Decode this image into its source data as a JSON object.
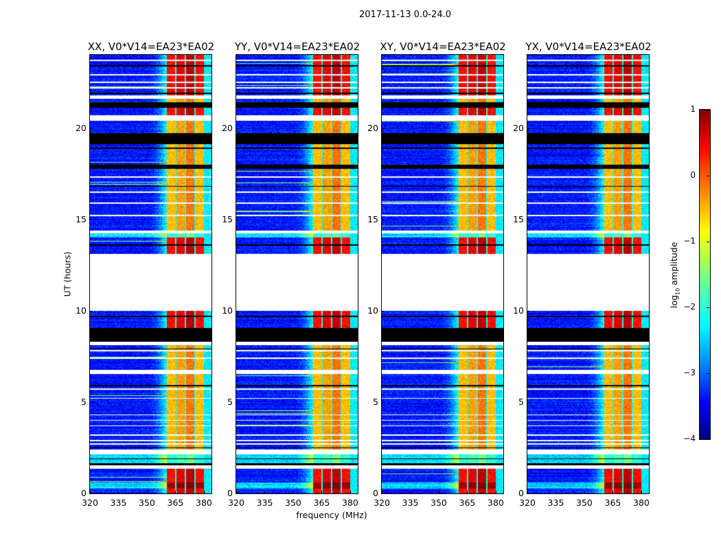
{
  "chart_data": {
    "type": "heatmap",
    "title": "2017-11-13 0.0-24.0",
    "xlabel": "frequency (MHz)",
    "ylabel": "UT (hours)",
    "xlim": [
      320,
      384
    ],
    "ylim": [
      0,
      24
    ],
    "xticks": [
      320,
      335,
      350,
      365,
      380
    ],
    "yticks": [
      0,
      5,
      10,
      15,
      20
    ],
    "colormap": "jet",
    "colorbar": {
      "label_prefix": "log",
      "label_sub": "10",
      "label_suffix": " amplitude",
      "range": [
        -4,
        1
      ],
      "ticks": [
        "1",
        "0",
        "−1",
        "−2",
        "−3",
        "−4"
      ],
      "tick_values": [
        1,
        0,
        -1,
        -2,
        -3,
        -4
      ]
    },
    "panels": [
      {
        "title": "XX, V0*V14=EA23*EA02",
        "seed": 11
      },
      {
        "title": "YY, V0*V14=EA23*EA02",
        "seed": 23
      },
      {
        "title": "XY, V0*V14=EA23*EA02",
        "seed": 37
      },
      {
        "title": "YX, V0*V14=EA23*EA02",
        "seed": 51
      }
    ],
    "spectral_model": {
      "background_log10": -3.3,
      "band_edges_MHz": [
        360.5,
        380
      ],
      "subband_gaps_MHz": [
        365.2,
        370.2,
        375.2
      ],
      "upper_edge_log10": -2.2
    },
    "time_segments": [
      {
        "t": [
          21.8,
          24.0
        ],
        "kind": "high"
      },
      {
        "t": [
          21.6,
          21.8
        ],
        "kind": "blank"
      },
      {
        "t": [
          21.1,
          21.4
        ],
        "kind": "flagged"
      },
      {
        "t": [
          20.7,
          21.1
        ],
        "kind": "high"
      },
      {
        "t": [
          20.4,
          20.7
        ],
        "kind": "blank"
      },
      {
        "t": [
          19.7,
          20.4
        ],
        "kind": "mid"
      },
      {
        "t": [
          19.1,
          19.7
        ],
        "kind": "flagged"
      },
      {
        "t": [
          18.0,
          19.1
        ],
        "kind": "mid"
      },
      {
        "t": [
          17.75,
          18.0
        ],
        "kind": "flagged"
      },
      {
        "t": [
          14.4,
          17.75
        ],
        "kind": "mid"
      },
      {
        "t": [
          14.25,
          14.4
        ],
        "kind": "blank"
      },
      {
        "t": [
          14.0,
          14.25
        ],
        "kind": "low"
      },
      {
        "t": [
          13.1,
          14.0
        ],
        "kind": "high"
      },
      {
        "t": [
          10.0,
          13.1
        ],
        "kind": "blank"
      },
      {
        "t": [
          9.05,
          10.0
        ],
        "kind": "high"
      },
      {
        "t": [
          8.3,
          9.05
        ],
        "kind": "flagged"
      },
      {
        "t": [
          8.1,
          8.3
        ],
        "kind": "blank"
      },
      {
        "t": [
          6.75,
          8.1
        ],
        "kind": "mid"
      },
      {
        "t": [
          6.55,
          6.75
        ],
        "kind": "blank"
      },
      {
        "t": [
          2.4,
          6.55
        ],
        "kind": "mid"
      },
      {
        "t": [
          2.15,
          2.4
        ],
        "kind": "blank"
      },
      {
        "t": [
          1.65,
          2.15
        ],
        "kind": "low"
      },
      {
        "t": [
          1.55,
          1.65
        ],
        "kind": "flagged"
      },
      {
        "t": [
          1.35,
          1.55
        ],
        "kind": "blank"
      },
      {
        "t": [
          0.6,
          1.35
        ],
        "kind": "high"
      },
      {
        "t": [
          0.25,
          0.6
        ],
        "kind": "very-high"
      },
      {
        "t": [
          0.0,
          0.25
        ],
        "kind": "high"
      }
    ],
    "thin_blank_lines_hours": [
      23.7,
      22.9,
      22.5,
      22.2,
      17.3,
      16.5,
      15.9,
      15.2,
      7.8,
      7.4,
      5.7,
      5.2,
      4.3,
      4.0,
      3.7,
      3.2,
      2.9,
      2.7
    ],
    "thin_flagged_lines_hours": [
      23.4,
      21.9,
      18.9,
      16.8,
      13.6,
      9.7,
      7.9,
      5.9,
      2.5,
      1.9
    ]
  }
}
